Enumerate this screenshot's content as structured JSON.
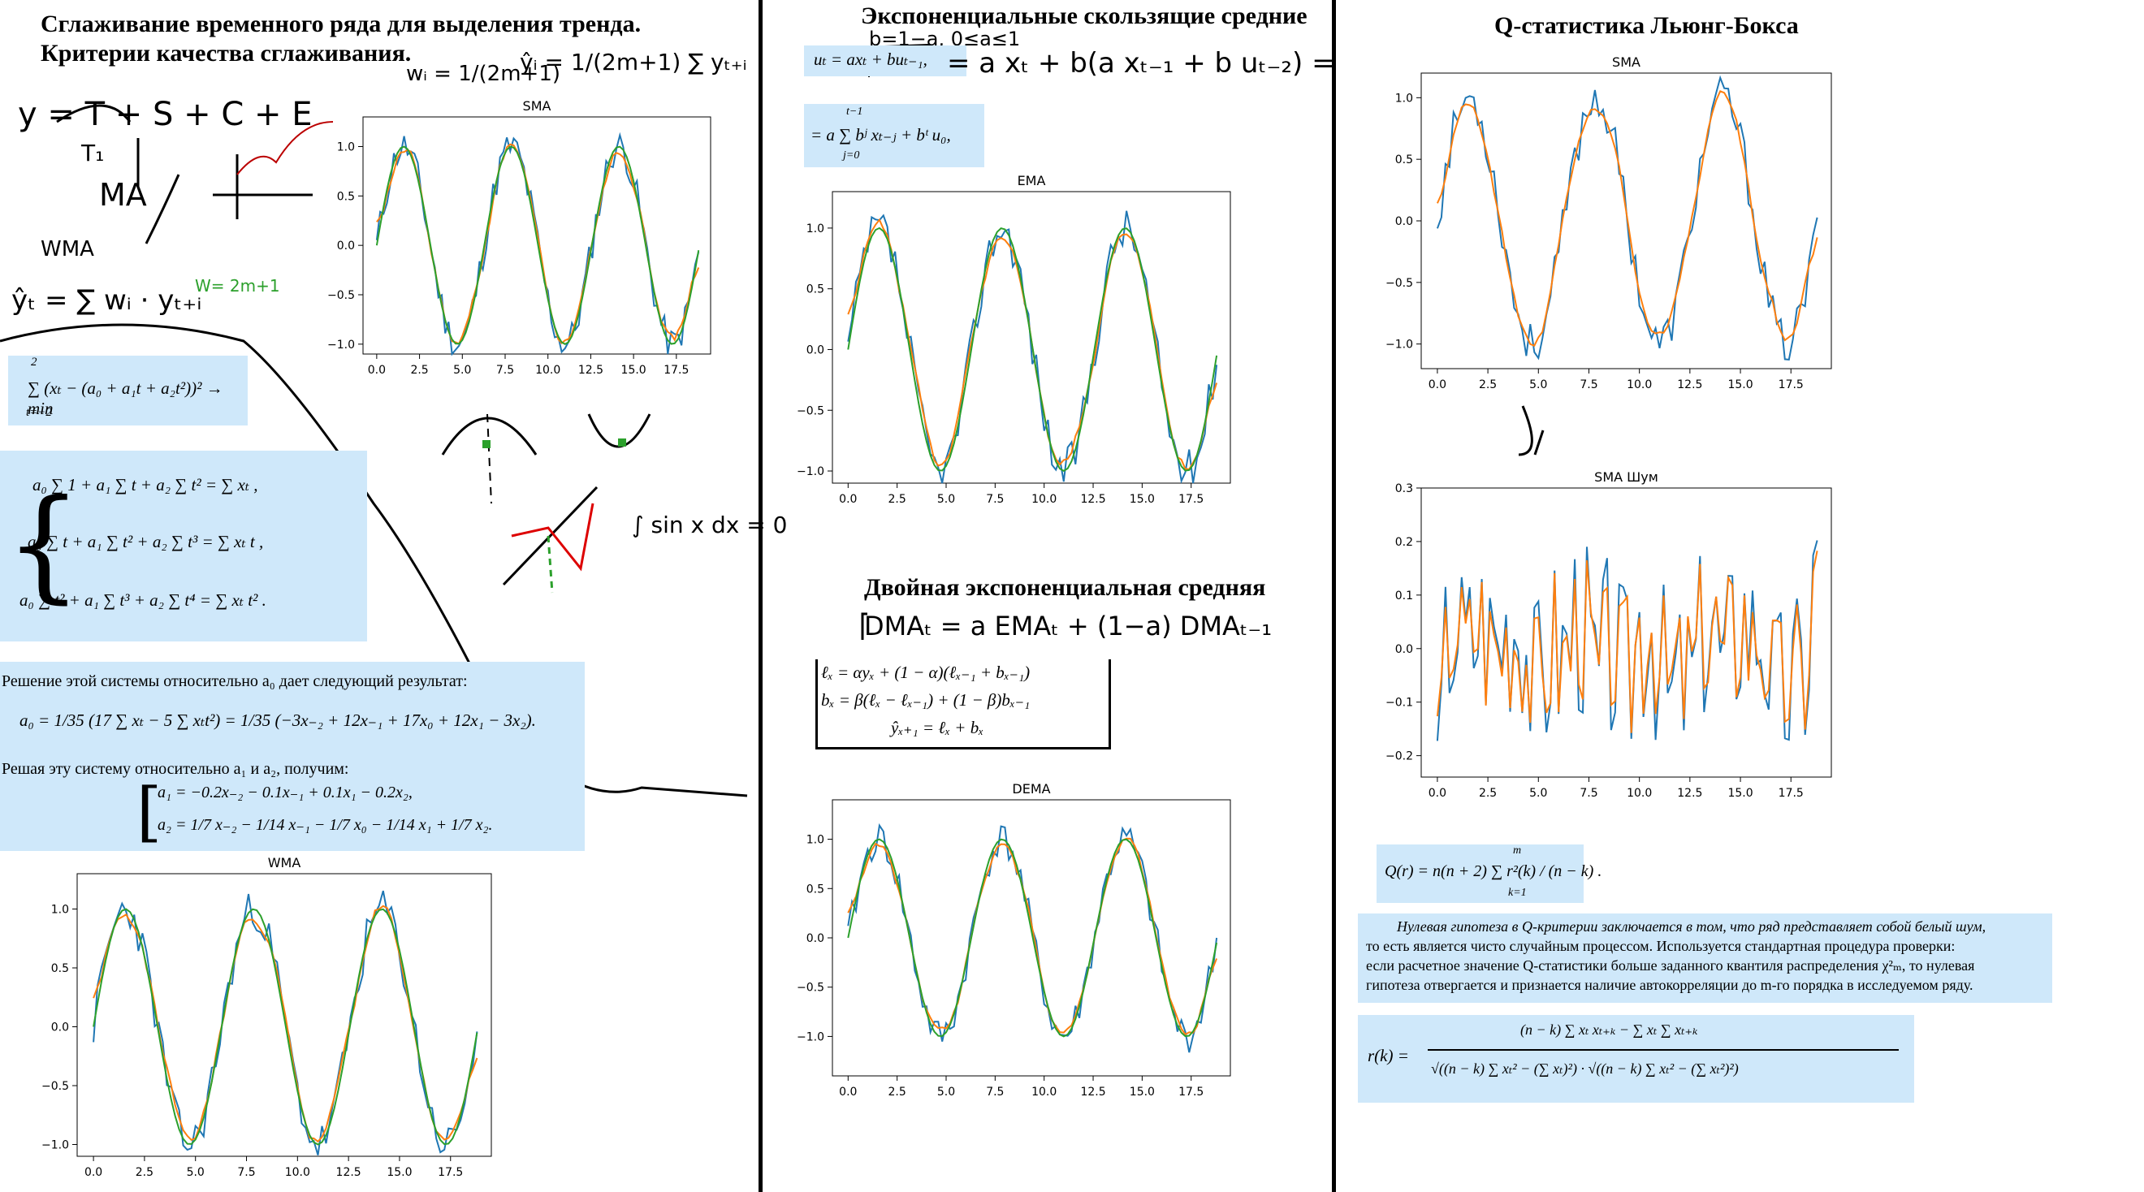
{
  "col1": {
    "title_line1": "Сглаживание временного ряда для выделения тренда.",
    "title_line2": "Критерии качества сглаживания.",
    "least_squares": "∑ (xₜ − (a₀ + a₁t + a₂t²))² → min",
    "sum_limits_top": "2",
    "sum_limits_bottom": "t=−2",
    "system_lines": [
      "a₀ ∑ 1 + a₁ ∑ t + a₂ ∑ t² = ∑ xₜ ,",
      "a₀ ∑ t + a₁ ∑ t² + a₂ ∑ t³ = ∑ xₜ t ,",
      "a₀ ∑ t² + a₁ ∑ t³ + a₂ ∑ t⁴ = ∑ xₜ t² ."
    ],
    "solution_intro": "Решение этой системы относительно a₀ дает следующий результат:",
    "a0_formula": "a₀ = 1/35 (17 ∑ xₜ − 5 ∑ xₜt²) = 1/35 (−3x₋₂ + 12x₋₁ + 17x₀ + 12x₁ − 3x₂).",
    "solution_intro2": "Решая эту систему относительно a₁ и a₂, получим:",
    "a1_formula": "a₁ = −0.2x₋₂ − 0.1x₋₁ + 0.1x₁ − 0.2x₂,",
    "a2_formula": "a₂ = 1/7 x₋₂ − 1/14 x₋₁ − 1/7 x₀ − 1/14 x₁ + 1/7 x₂.",
    "hand_decomp": "y = T + S + C + E",
    "hand_T1": "T₁",
    "hand_MA": "MA",
    "hand_WMA": "WMA",
    "hand_yhat": "ŷₜ = ∑ wᵢ · yₜ₊ᵢ",
    "hand_w": "wᵢ = 1/(2m+1)",
    "hand_y2": "ŷᵢ = 1/(2m+1) ∑ yₜ₊ᵢ",
    "hand_W": "W= 2m+1",
    "hand_sin": "∫ sin x dx = 0"
  },
  "col2": {
    "title": "Экспоненциальные скользящие средние",
    "hand_b": "b=1−a, 0≤a≤1",
    "ema_formula1": "uₜ = axₜ + buₜ₋₁,",
    "hand_ema": "= a xₜ + b(a xₜ₋₁ + b uₜ₋₂) =",
    "ema_formula2": "= a ∑ bʲ xₜ₋ⱼ + bᵗ u₀,",
    "ema_formula2_top": "t−1",
    "ema_formula2_bottom": "j=0",
    "dema_title": "Двойная экспоненциальная средняя",
    "hand_dema": "DMAₜ = a EMAₜ + (1−a) DMAₜ₋₁",
    "holt_lines": [
      "ℓₓ = αyₓ + (1 − α)(ℓₓ₋₁ + bₓ₋₁)",
      "bₓ = β(ℓₓ − ℓₓ₋₁) + (1 − β)bₓ₋₁",
      "ŷₓ₊₁ = ℓₓ + bₓ"
    ]
  },
  "col3": {
    "title": "Q-статистика Льюнг-Бокса",
    "q_formula": "Q(r) = n(n + 2) ∑ r²(k) / (n − k) .",
    "q_top": "m",
    "q_bottom": "k=1",
    "hypothesis_lines": [
      "Нулевая гипотеза в Q-критерии заключается в том, что ряд представляет собой белый шум,",
      "то есть является чисто случайным процессом. Используется стандартная процедура проверки:",
      "если расчетное значение Q-статистики больше заданного квантиля распределения χ²ₘ, то нулевая",
      "гипотеза отвергается и признается наличие автокорреляции до m-го порядка в исследуемом ряду."
    ],
    "rk_lhs": "r(k) =",
    "rk_num": "(n − k) ∑ xₜ xₜ₊ₖ − ∑ xₜ ∑ xₜ₊ₖ",
    "rk_den": "√((n − k) ∑ xₜ² − (∑ xₜ)²) · √((n − k) ∑ xₜ² − (∑ xₜ²)²)"
  },
  "plots": {
    "sma_left": {
      "title": "SMA"
    },
    "wma": {
      "title": "WMA"
    },
    "ema": {
      "title": "EMA"
    },
    "dema": {
      "title": "DEMA"
    },
    "sma_right": {
      "title": "SMA"
    },
    "sma_noise": {
      "title": "SMA Шум"
    }
  },
  "chart_data": [
    {
      "type": "line",
      "title": "SMA",
      "x_ticks": [
        "0.0",
        "2.5",
        "5.0",
        "7.5",
        "10.0",
        "12.5",
        "15.0",
        "17.5"
      ],
      "y_ticks": [
        "−1.0",
        "−0.5",
        "0.0",
        "0.5",
        "1.0"
      ],
      "xlim": [
        -0.8,
        19.5
      ],
      "ylim": [
        -1.1,
        1.3
      ],
      "series_colors": [
        "#1f77b4",
        "#ff7f0e",
        "#2ca02c"
      ]
    },
    {
      "type": "line",
      "title": "WMA",
      "x_ticks": [
        "0.0",
        "2.5",
        "5.0",
        "7.5",
        "10.0",
        "12.5",
        "15.0",
        "17.5"
      ],
      "y_ticks": [
        "−1.0",
        "−0.5",
        "0.0",
        "0.5",
        "1.0"
      ],
      "xlim": [
        -0.8,
        19.5
      ],
      "ylim": [
        -1.1,
        1.3
      ],
      "series_colors": [
        "#1f77b4",
        "#ff7f0e",
        "#2ca02c"
      ]
    },
    {
      "type": "line",
      "title": "EMA",
      "x_ticks": [
        "0.0",
        "2.5",
        "5.0",
        "7.5",
        "10.0",
        "12.5",
        "15.0",
        "17.5"
      ],
      "y_ticks": [
        "−1.0",
        "−0.5",
        "0.0",
        "0.5",
        "1.0"
      ],
      "xlim": [
        -0.8,
        19.5
      ],
      "ylim": [
        -1.1,
        1.3
      ],
      "series_colors": [
        "#1f77b4",
        "#ff7f0e",
        "#2ca02c"
      ]
    },
    {
      "type": "line",
      "title": "DEMA",
      "x_ticks": [
        "0.0",
        "2.5",
        "5.0",
        "7.5",
        "10.0",
        "12.5",
        "15.0",
        "17.5"
      ],
      "y_ticks": [
        "−1.0",
        "−0.5",
        "0.0",
        "0.5",
        "1.0"
      ],
      "xlim": [
        -0.8,
        19.5
      ],
      "ylim": [
        -1.4,
        1.4
      ],
      "series_colors": [
        "#1f77b4",
        "#ff7f0e",
        "#2ca02c"
      ]
    },
    {
      "type": "line",
      "title": "SMA",
      "x_ticks": [
        "0.0",
        "2.5",
        "5.0",
        "7.5",
        "10.0",
        "12.5",
        "15.0",
        "17.5"
      ],
      "y_ticks": [
        "−1.0",
        "−0.5",
        "0.0",
        "0.5",
        "1.0"
      ],
      "xlim": [
        -0.8,
        19.5
      ],
      "ylim": [
        -1.2,
        1.2
      ],
      "series_colors": [
        "#1f77b4",
        "#ff7f0e"
      ]
    },
    {
      "type": "line",
      "title": "SMA Шум",
      "x_ticks": [
        "0.0",
        "2.5",
        "5.0",
        "7.5",
        "10.0",
        "12.5",
        "15.0",
        "17.5"
      ],
      "y_ticks": [
        "−0.2",
        "−0.1",
        "0.0",
        "0.1",
        "0.2",
        "0.3"
      ],
      "xlim": [
        -0.8,
        19.5
      ],
      "ylim": [
        -0.24,
        0.3
      ],
      "series_colors": [
        "#1f77b4",
        "#ff7f0e"
      ]
    }
  ]
}
